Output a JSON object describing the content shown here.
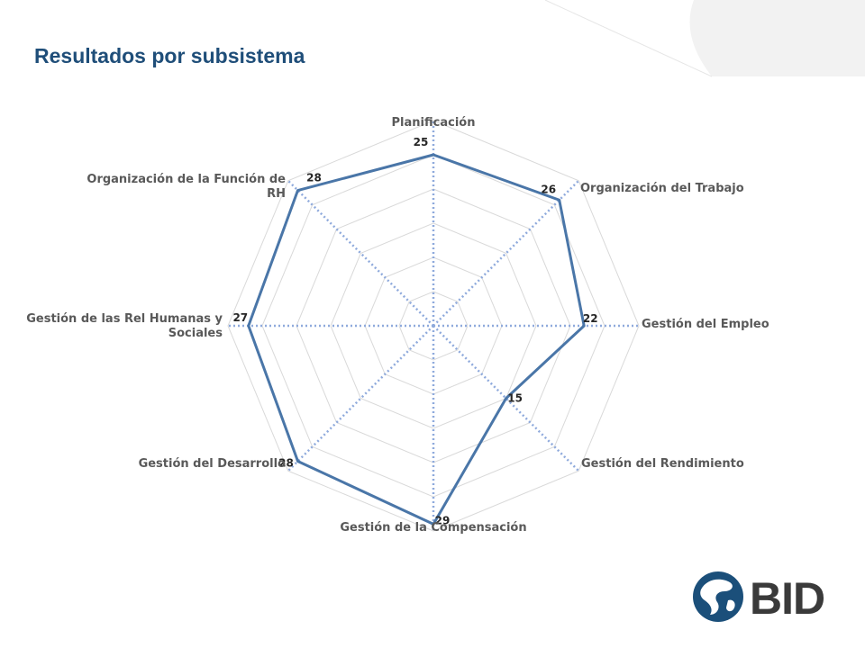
{
  "header": {
    "title": "Resultados por subsistema"
  },
  "brand": {
    "name": "BID",
    "primary_color": "#1b4f7a",
    "text_color": "#3a3a3a"
  },
  "colors": {
    "series": "#4a76a8",
    "grid": "#d9d9d9",
    "axis": "#8faadc"
  },
  "chart_data": {
    "type": "radar",
    "title": "",
    "categories": [
      "Planificación",
      "Organización del Trabajo",
      "Gestión del Empleo",
      "Gestión del Rendimiento",
      "Gestión de la Compensación",
      "Gestión del Desarrollo",
      "Gestión de las Rel Humanas y Sociales",
      "Organización de la Función de RH"
    ],
    "category_lines": [
      [
        "Planificación"
      ],
      [
        "Organización del Trabajo"
      ],
      [
        "Gestión del Empleo"
      ],
      [
        "Gestión del Rendimiento"
      ],
      [
        "Gestión de la Compensación"
      ],
      [
        "Gestión del Desarrollo"
      ],
      [
        "Gestión de las Rel Humanas y",
        "Sociales"
      ],
      [
        "Organización de la Función de",
        "RH"
      ]
    ],
    "values": [
      25,
      26,
      22,
      15,
      29,
      28,
      27,
      28
    ],
    "rlim": [
      0,
      30
    ],
    "grid_rings": 6,
    "grid": true,
    "legend": "none"
  }
}
